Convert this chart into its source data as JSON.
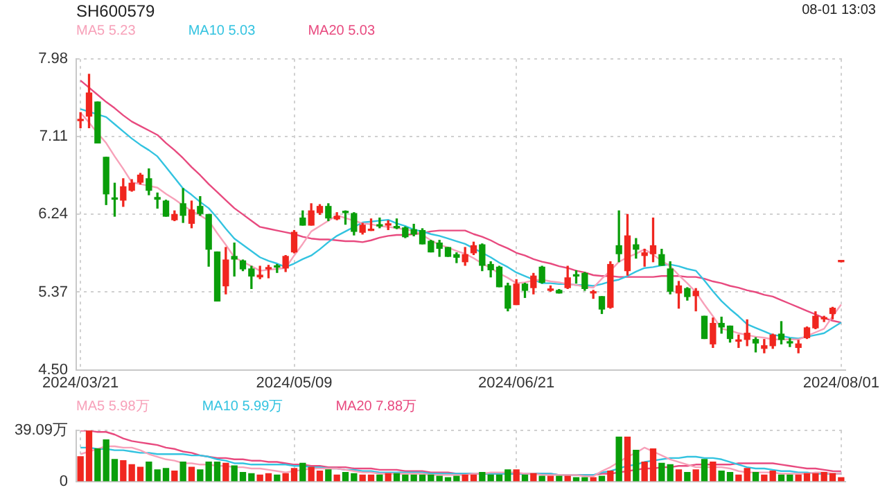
{
  "chart_data": [
    {
      "type": "candlestick",
      "title": "SH600579",
      "annotations": [
        "08-01 13:03"
      ],
      "legend": "top left",
      "grid": true,
      "categories": [
        "2024/03/21",
        null,
        null,
        null,
        null,
        null,
        null,
        null,
        null,
        null,
        null,
        null,
        null,
        null,
        null,
        null,
        null,
        null,
        null,
        null,
        null,
        null,
        null,
        null,
        null,
        "2024/05/09",
        null,
        null,
        null,
        null,
        null,
        null,
        null,
        null,
        null,
        null,
        null,
        null,
        null,
        null,
        null,
        null,
        null,
        null,
        null,
        null,
        null,
        null,
        null,
        null,
        null,
        "2024/06/21",
        null,
        null,
        null,
        null,
        null,
        null,
        null,
        null,
        null,
        null,
        null,
        null,
        null,
        null,
        null,
        null,
        null,
        null,
        null,
        null,
        null,
        null,
        null,
        null,
        null,
        null,
        null,
        null,
        null,
        null,
        null,
        null,
        null,
        null,
        null,
        null,
        null,
        "2024/08/01"
      ],
      "ohlc": [
        [
          7.29,
          7.38,
          7.21,
          7.3
        ],
        [
          7.34,
          7.81,
          7.21,
          7.6
        ],
        [
          7.5,
          7.5,
          7.04,
          7.04
        ],
        [
          6.88,
          6.88,
          6.35,
          6.47
        ],
        [
          6.42,
          6.59,
          6.22,
          6.41
        ],
        [
          6.4,
          6.64,
          6.33,
          6.55
        ],
        [
          6.51,
          6.63,
          6.5,
          6.59
        ],
        [
          6.6,
          6.7,
          6.58,
          6.68
        ],
        [
          6.64,
          6.75,
          6.46,
          6.51
        ],
        [
          6.43,
          6.48,
          6.31,
          6.41
        ],
        [
          6.39,
          6.4,
          6.22,
          6.22
        ],
        [
          6.18,
          6.28,
          6.17,
          6.24
        ],
        [
          6.36,
          6.53,
          6.15,
          6.23
        ],
        [
          6.14,
          6.39,
          6.09,
          6.29
        ],
        [
          6.33,
          6.44,
          6.23,
          6.25
        ],
        [
          6.24,
          6.24,
          5.66,
          5.85
        ],
        [
          5.82,
          5.82,
          5.27,
          5.27
        ],
        [
          5.44,
          5.87,
          5.35,
          5.73
        ],
        [
          5.77,
          5.92,
          5.55,
          5.74
        ],
        [
          5.72,
          5.73,
          5.61,
          5.63
        ],
        [
          5.63,
          5.66,
          5.41,
          5.55
        ],
        [
          5.54,
          5.66,
          5.52,
          5.56
        ],
        [
          5.63,
          5.67,
          5.53,
          5.64
        ],
        [
          5.66,
          5.68,
          5.59,
          5.65
        ],
        [
          5.64,
          5.78,
          5.6,
          5.77
        ],
        [
          5.82,
          6.06,
          5.81,
          6.04
        ],
        [
          6.2,
          6.28,
          6.12,
          6.12
        ],
        [
          6.12,
          6.36,
          6.12,
          6.28
        ],
        [
          6.26,
          6.35,
          6.24,
          6.33
        ],
        [
          6.33,
          6.36,
          6.17,
          6.2
        ],
        [
          6.19,
          6.26,
          6.18,
          6.22
        ],
        [
          6.27,
          6.28,
          6.13,
          6.26
        ],
        [
          6.25,
          6.26,
          6.01,
          6.05
        ],
        [
          6.04,
          6.14,
          6.02,
          6.12
        ],
        [
          6.06,
          6.19,
          6.06,
          6.07
        ],
        [
          6.12,
          6.2,
          6.09,
          6.11
        ],
        [
          6.12,
          6.17,
          6.07,
          6.13
        ],
        [
          6.1,
          6.19,
          6.08,
          6.09
        ],
        [
          6.09,
          6.1,
          5.98,
          5.99
        ],
        [
          6.07,
          6.13,
          6.0,
          6.02
        ],
        [
          6.06,
          6.08,
          5.91,
          5.91
        ],
        [
          5.94,
          5.95,
          5.82,
          5.82
        ],
        [
          5.92,
          5.95,
          5.77,
          5.86
        ],
        [
          5.87,
          5.87,
          5.77,
          5.77
        ],
        [
          5.79,
          5.81,
          5.7,
          5.76
        ],
        [
          5.71,
          5.87,
          5.67,
          5.79
        ],
        [
          5.81,
          5.93,
          5.79,
          5.89
        ],
        [
          5.9,
          5.91,
          5.61,
          5.67
        ],
        [
          5.68,
          5.71,
          5.54,
          5.62
        ],
        [
          5.65,
          5.66,
          5.43,
          5.43
        ],
        [
          5.44,
          5.47,
          5.16,
          5.19
        ],
        [
          5.23,
          5.51,
          5.23,
          5.46
        ],
        [
          5.46,
          5.47,
          5.31,
          5.39
        ],
        [
          5.42,
          5.58,
          5.35,
          5.55
        ],
        [
          5.65,
          5.66,
          5.47,
          5.48
        ],
        [
          5.39,
          5.44,
          5.38,
          5.4
        ],
        [
          5.39,
          5.4,
          5.36,
          5.36
        ],
        [
          5.42,
          5.66,
          5.41,
          5.53
        ],
        [
          5.56,
          5.61,
          5.47,
          5.55
        ],
        [
          5.58,
          5.59,
          5.39,
          5.41
        ],
        [
          5.36,
          5.39,
          5.3,
          5.37
        ],
        [
          5.32,
          5.32,
          5.13,
          5.18
        ],
        [
          5.2,
          5.71,
          5.19,
          5.68
        ],
        [
          5.89,
          6.28,
          5.71,
          5.8
        ],
        [
          5.61,
          6.24,
          5.56,
          6.0
        ],
        [
          5.9,
          5.97,
          5.75,
          5.85
        ],
        [
          5.78,
          5.85,
          5.66,
          5.81
        ],
        [
          5.8,
          6.2,
          5.71,
          5.89
        ],
        [
          5.79,
          5.85,
          5.67,
          5.67
        ],
        [
          5.63,
          5.71,
          5.35,
          5.38
        ],
        [
          5.36,
          5.49,
          5.19,
          5.44
        ],
        [
          5.41,
          5.42,
          5.28,
          5.32
        ],
        [
          5.33,
          5.41,
          5.16,
          5.38
        ],
        [
          5.1,
          5.1,
          4.85,
          4.85
        ],
        [
          4.79,
          5.08,
          4.75,
          5.02
        ],
        [
          5.02,
          5.09,
          4.91,
          4.98
        ],
        [
          4.99,
          4.99,
          4.81,
          4.85
        ],
        [
          4.82,
          4.89,
          4.75,
          4.83
        ],
        [
          4.84,
          5.06,
          4.77,
          4.91
        ],
        [
          4.84,
          4.86,
          4.7,
          4.8
        ],
        [
          4.74,
          4.84,
          4.69,
          4.77
        ],
        [
          4.77,
          4.9,
          4.74,
          4.89
        ],
        [
          4.9,
          5.04,
          4.79,
          4.84
        ],
        [
          4.81,
          4.85,
          4.76,
          4.8
        ],
        [
          4.75,
          4.83,
          4.69,
          4.79
        ],
        [
          4.86,
          4.98,
          4.85,
          4.97
        ],
        [
          4.97,
          5.15,
          4.96,
          5.1
        ],
        [
          5.07,
          5.1,
          5.04,
          5.08
        ],
        [
          5.13,
          5.2,
          5.07,
          5.19
        ],
        [
          5.71,
          5.71,
          5.71,
          5.71
        ]
      ],
      "colors": [
        "#f0261f",
        "#f0261f",
        "#0a9e0a",
        "#0a9e0a",
        "#0a9e0a",
        "#f0261f",
        "#f0261f",
        "#f0261f",
        "#0a9e0a",
        "#0a9e0a",
        "#0a9e0a",
        "#f0261f",
        "#0a9e0a",
        "#f0261f",
        "#0a9e0a",
        "#0a9e0a",
        "#0a9e0a",
        "#f0261f",
        "#0a9e0a",
        "#0a9e0a",
        "#0a9e0a",
        "#f0261f",
        "#f0261f",
        "#0a9e0a",
        "#f0261f",
        "#f0261f",
        "#0a9e0a",
        "#f0261f",
        "#f0261f",
        "#0a9e0a",
        "#f0261f",
        "#0a9e0a",
        "#0a9e0a",
        "#f0261f",
        "#f0261f",
        "#0a9e0a",
        "#f0261f",
        "#0a9e0a",
        "#0a9e0a",
        "#0a9e0a",
        "#0a9e0a",
        "#0a9e0a",
        "#0a9e0a",
        "#0a9e0a",
        "#0a9e0a",
        "#f0261f",
        "#f0261f",
        "#0a9e0a",
        "#0a9e0a",
        "#0a9e0a",
        "#0a9e0a",
        "#f0261f",
        "#0a9e0a",
        "#f0261f",
        "#0a9e0a",
        "#f0261f",
        "#0a9e0a",
        "#f0261f",
        "#0a9e0a",
        "#0a9e0a",
        "#f0261f",
        "#0a9e0a",
        "#f0261f",
        "#0a9e0a",
        "#f0261f",
        "#0a9e0a",
        "#f0261f",
        "#f0261f",
        "#0a9e0a",
        "#0a9e0a",
        "#f0261f",
        "#0a9e0a",
        "#f0261f",
        "#0a9e0a",
        "#f0261f",
        "#0a9e0a",
        "#0a9e0a",
        "#f0261f",
        "#f0261f",
        "#0a9e0a",
        "#f0261f",
        "#f0261f",
        "#0a9e0a",
        "#0a9e0a",
        "#f0261f",
        "#f0261f",
        "#f0261f",
        "#f0261f",
        "#f0261f",
        "#f0261f"
      ],
      "ylim": [
        4.5,
        7.98
      ],
      "yticks": [
        {
          "value": 4.5,
          "label": "4.50"
        },
        5.37,
        6.24,
        7.11,
        7.98
      ],
      "series": [
        {
          "type": "line",
          "name": "MA5 5.23",
          "color": "#f7a1b9",
          "values": [
            7.38,
            7.27,
            7.15,
            7.04,
            6.89,
            6.75,
            6.6,
            6.58,
            6.56,
            6.54,
            6.47,
            6.41,
            6.34,
            6.28,
            6.23,
            6.17,
            6.03,
            5.9,
            5.76,
            5.71,
            5.66,
            5.61,
            5.62,
            5.63,
            5.64,
            5.78,
            5.91,
            6.05,
            6.11,
            6.17,
            6.23,
            6.2,
            6.17,
            6.14,
            6.13,
            6.11,
            6.1,
            6.09,
            6.07,
            6.06,
            6.01,
            5.95,
            5.9,
            5.87,
            5.83,
            5.8,
            5.75,
            5.69,
            5.64,
            5.58,
            5.53,
            5.47,
            5.48,
            5.5,
            5.51,
            5.49,
            5.48,
            5.46,
            5.45,
            5.43,
            5.42,
            5.52,
            5.61,
            5.71,
            5.76,
            5.8,
            5.85,
            5.79,
            5.72,
            5.66,
            5.56,
            5.47,
            5.37,
            5.23,
            5.1,
            4.96,
            4.94,
            4.91,
            4.89,
            4.87,
            4.86,
            4.84,
            4.84,
            4.84,
            4.84,
            4.88,
            4.92,
            4.96,
            5.1,
            5.23
          ]
        },
        {
          "type": "line",
          "name": "MA10 5.03",
          "color": "#33c3e0",
          "values": [
            7.42,
            7.39,
            7.36,
            7.33,
            7.25,
            7.17,
            7.09,
            7.02,
            6.96,
            6.89,
            6.77,
            6.65,
            6.53,
            6.46,
            6.38,
            6.31,
            6.2,
            6.08,
            5.97,
            5.9,
            5.83,
            5.76,
            5.72,
            5.69,
            5.65,
            5.69,
            5.74,
            5.78,
            5.85,
            5.93,
            6.0,
            6.05,
            6.1,
            6.15,
            6.16,
            6.17,
            6.18,
            6.14,
            6.11,
            6.07,
            6.05,
            6.02,
            6.0,
            5.97,
            5.94,
            5.91,
            5.86,
            5.81,
            5.76,
            5.7,
            5.65,
            5.59,
            5.55,
            5.51,
            5.47,
            5.47,
            5.46,
            5.46,
            5.45,
            5.45,
            5.44,
            5.46,
            5.49,
            5.51,
            5.55,
            5.6,
            5.64,
            5.65,
            5.67,
            5.68,
            5.66,
            5.63,
            5.61,
            5.5,
            5.38,
            5.27,
            5.18,
            5.1,
            5.01,
            4.97,
            4.93,
            4.89,
            4.88,
            4.86,
            4.85,
            4.87,
            4.89,
            4.91,
            4.97,
            5.03
          ]
        },
        {
          "type": "line",
          "name": "MA20 5.03",
          "color": "#e84a7f",
          "values": [
            7.74,
            7.66,
            7.58,
            7.5,
            7.43,
            7.35,
            7.28,
            7.23,
            7.18,
            7.13,
            7.04,
            6.96,
            6.87,
            6.77,
            6.68,
            6.58,
            6.49,
            6.4,
            6.31,
            6.24,
            6.17,
            6.1,
            6.08,
            6.06,
            6.04,
            6.02,
            5.99,
            5.97,
            5.96,
            5.96,
            5.95,
            5.94,
            5.94,
            5.93,
            5.95,
            5.98,
            6.0,
            6.01,
            6.01,
            6.02,
            6.03,
            6.05,
            6.06,
            6.06,
            6.06,
            6.06,
            6.02,
            5.99,
            5.95,
            5.9,
            5.86,
            5.81,
            5.78,
            5.74,
            5.71,
            5.69,
            5.66,
            5.64,
            5.61,
            5.59,
            5.56,
            5.55,
            5.55,
            5.54,
            5.54,
            5.54,
            5.54,
            5.54,
            5.55,
            5.55,
            5.55,
            5.54,
            5.54,
            5.52,
            5.49,
            5.47,
            5.44,
            5.42,
            5.39,
            5.37,
            5.34,
            5.32,
            5.28,
            5.24,
            5.2,
            5.16,
            5.12,
            5.08,
            5.05,
            5.03
          ]
        }
      ]
    },
    {
      "type": "bar",
      "legend": "top left",
      "grid": true,
      "tick_labels": "y",
      "categories": [
        "2024/03/21",
        null,
        null,
        null,
        null,
        null,
        null,
        null,
        null,
        null,
        null,
        null,
        null,
        null,
        null,
        null,
        null,
        null,
        null,
        null,
        null,
        null,
        null,
        null,
        null,
        "2024/05/09",
        null,
        null,
        null,
        null,
        null,
        null,
        null,
        null,
        null,
        null,
        null,
        null,
        null,
        null,
        null,
        null,
        null,
        null,
        null,
        null,
        null,
        null,
        null,
        null,
        null,
        "2024/06/21",
        null,
        null,
        null,
        null,
        null,
        null,
        null,
        null,
        null,
        null,
        null,
        null,
        null,
        null,
        null,
        null,
        null,
        null,
        null,
        null,
        null,
        null,
        null,
        null,
        null,
        null,
        null,
        null,
        null,
        null,
        null,
        null,
        null,
        null,
        null,
        null,
        null,
        "2024/08/01"
      ],
      "values": [
        19,
        39.09,
        25,
        32,
        17,
        16,
        13,
        11,
        15,
        9,
        10,
        8,
        15,
        11,
        9,
        15,
        15,
        14,
        12,
        7,
        6,
        5,
        6,
        5,
        6,
        10,
        14,
        11,
        8,
        9,
        5,
        7,
        6,
        5,
        5,
        5,
        6,
        6,
        5,
        5,
        5,
        5,
        4,
        3,
        4,
        5,
        5,
        7,
        5,
        5,
        9,
        9,
        5,
        6,
        4,
        4,
        4,
        4,
        3,
        3,
        3,
        4,
        8,
        34,
        34,
        24,
        15,
        25,
        14,
        13,
        9,
        7,
        9,
        17,
        15,
        8,
        7,
        5,
        10,
        7,
        5,
        8,
        5,
        5,
        5,
        6,
        6,
        7,
        6,
        3
      ],
      "colors": [
        "#f0261f",
        "#f0261f",
        "#0a9e0a",
        "#0a9e0a",
        "#0a9e0a",
        "#f0261f",
        "#f0261f",
        "#f0261f",
        "#0a9e0a",
        "#0a9e0a",
        "#0a9e0a",
        "#f0261f",
        "#0a9e0a",
        "#f0261f",
        "#0a9e0a",
        "#0a9e0a",
        "#0a9e0a",
        "#f0261f",
        "#0a9e0a",
        "#0a9e0a",
        "#0a9e0a",
        "#f0261f",
        "#f0261f",
        "#0a9e0a",
        "#f0261f",
        "#f0261f",
        "#0a9e0a",
        "#f0261f",
        "#f0261f",
        "#0a9e0a",
        "#f0261f",
        "#0a9e0a",
        "#0a9e0a",
        "#f0261f",
        "#f0261f",
        "#0a9e0a",
        "#f0261f",
        "#0a9e0a",
        "#0a9e0a",
        "#0a9e0a",
        "#0a9e0a",
        "#0a9e0a",
        "#0a9e0a",
        "#0a9e0a",
        "#0a9e0a",
        "#f0261f",
        "#f0261f",
        "#0a9e0a",
        "#0a9e0a",
        "#0a9e0a",
        "#0a9e0a",
        "#f0261f",
        "#0a9e0a",
        "#f0261f",
        "#0a9e0a",
        "#f0261f",
        "#0a9e0a",
        "#f0261f",
        "#0a9e0a",
        "#0a9e0a",
        "#f0261f",
        "#0a9e0a",
        "#f0261f",
        "#0a9e0a",
        "#f0261f",
        "#0a9e0a",
        "#f0261f",
        "#f0261f",
        "#0a9e0a",
        "#0a9e0a",
        "#f0261f",
        "#0a9e0a",
        "#f0261f",
        "#0a9e0a",
        "#f0261f",
        "#0a9e0a",
        "#0a9e0a",
        "#f0261f",
        "#f0261f",
        "#0a9e0a",
        "#f0261f",
        "#f0261f",
        "#0a9e0a",
        "#0a9e0a",
        "#f0261f",
        "#f0261f",
        "#f0261f",
        "#f0261f",
        "#f0261f",
        "#f0261f"
      ],
      "ylim": [
        0,
        39.09
      ],
      "yticks": [
        0,
        {
          "value": 39.09,
          "label": "39.09万"
        }
      ],
      "series": [
        {
          "type": "line",
          "name": "MA5 5.98万",
          "color": "#f7a1b9",
          "values": [
            21,
            23,
            25,
            27,
            27,
            26,
            26,
            24,
            21,
            19,
            17,
            16,
            14,
            14,
            13,
            13,
            12,
            12,
            11,
            11,
            10,
            10,
            9,
            8,
            7,
            8,
            9,
            10,
            10,
            10,
            10,
            9,
            8,
            7,
            7,
            6,
            6,
            6,
            6,
            6,
            6,
            5,
            5,
            5,
            5,
            5,
            6,
            6,
            7,
            7,
            7,
            7,
            6,
            6,
            5,
            5,
            5,
            5,
            5,
            4,
            4,
            8,
            11,
            15,
            19,
            22,
            26,
            23,
            20,
            17,
            15,
            13,
            11,
            11,
            11,
            11,
            10,
            8,
            7,
            7,
            7,
            7,
            6,
            6,
            6,
            6,
            7,
            7,
            6,
            5.98
          ]
        },
        {
          "type": "line",
          "name": "MA10 5.99万",
          "color": "#33c3e0",
          "values": [
            26,
            26,
            25,
            25,
            24,
            24,
            23,
            22,
            22,
            21,
            21,
            21,
            21,
            20,
            20,
            19,
            17,
            16,
            14,
            14,
            13,
            13,
            13,
            13,
            13,
            12,
            12,
            11,
            11,
            10,
            10,
            9,
            9,
            8,
            8,
            7,
            7,
            7,
            7,
            7,
            7,
            6,
            6,
            6,
            6,
            6,
            6,
            6,
            6,
            6,
            6,
            6,
            6,
            6,
            6,
            6,
            5,
            5,
            5,
            5,
            5,
            7,
            8,
            10,
            12,
            13,
            15,
            16,
            17,
            18,
            18,
            19,
            19,
            18,
            18,
            17,
            15,
            13,
            11,
            10,
            10,
            9,
            8,
            8,
            7,
            7,
            6,
            6,
            6,
            5.99
          ]
        },
        {
          "type": "line",
          "name": "MA20 7.88万",
          "color": "#e84a7f",
          "values": [
            39,
            39,
            38,
            38,
            36,
            33,
            31,
            30,
            29,
            28,
            26,
            25,
            23,
            22,
            20,
            19,
            18,
            18,
            17,
            17,
            16,
            16,
            15,
            15,
            14,
            13,
            13,
            12,
            12,
            11,
            11,
            11,
            10,
            10,
            10,
            9,
            9,
            9,
            8,
            8,
            8,
            7,
            7,
            7,
            6,
            6,
            6,
            6,
            6,
            6,
            6,
            6,
            6,
            6,
            6,
            6,
            5,
            5,
            5,
            5,
            5,
            6,
            6,
            7,
            8,
            9,
            10,
            10,
            11,
            11,
            12,
            12,
            13,
            13,
            13,
            13,
            13,
            14,
            14,
            14,
            14,
            14,
            13,
            12,
            11,
            10,
            10,
            9,
            8,
            7.88
          ]
        }
      ]
    }
  ]
}
